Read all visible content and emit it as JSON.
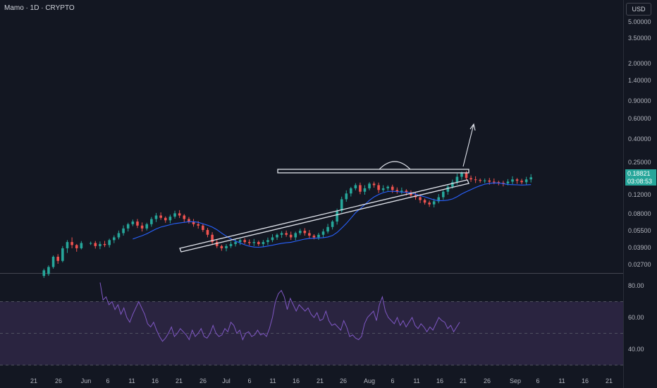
{
  "header": {
    "title": "Mamo · 1D · CRYPTO",
    "currency": "USD"
  },
  "price_label": {
    "value": "0.18821",
    "countdown": "03:08:53"
  },
  "chart_data": {
    "type": "candlestick",
    "scale": "log",
    "price_axis": [
      "5.00000",
      "3.50000",
      "2.00000",
      "1.40000",
      "0.90000",
      "0.60000",
      "0.40000",
      "0.25000",
      "0.12000",
      "0.08000",
      "0.05500",
      "0.03900",
      "0.02700"
    ],
    "x_axis": [
      "21",
      "26",
      "Jun",
      "6",
      "11",
      "16",
      "21",
      "26",
      "Jul",
      "6",
      "11",
      "16",
      "21",
      "26",
      "Aug",
      "6",
      "11",
      "16",
      "21",
      "26",
      "Sep",
      "6",
      "11",
      "16",
      "21"
    ],
    "colors": {
      "up": "#26a69a",
      "down": "#ef5350",
      "ma": "#2962ff",
      "rsi": "#7e57c2",
      "rsi_band": "#2a2440"
    },
    "rsi": {
      "axis": [
        "80.00",
        "60.00",
        "40.00"
      ],
      "levels": [
        70,
        30
      ],
      "values": [
        82,
        71,
        73,
        68,
        70,
        65,
        68,
        62,
        66,
        60,
        57,
        62,
        66,
        70,
        66,
        62,
        56,
        54,
        57,
        52,
        48,
        45,
        47,
        50,
        54,
        48,
        50,
        53,
        51,
        49,
        46,
        52,
        48,
        50,
        53,
        48,
        47,
        50,
        55,
        50,
        48,
        49,
        53,
        51,
        57,
        55,
        50,
        52,
        46,
        50,
        51,
        48,
        49,
        52,
        49,
        50,
        48,
        53,
        60,
        70,
        75,
        77,
        73,
        65,
        72,
        68,
        64,
        68,
        66,
        64,
        66,
        62,
        60,
        63,
        58,
        59,
        64,
        58,
        55,
        56,
        54,
        52,
        58,
        54,
        48,
        49,
        47,
        46,
        48,
        56,
        60,
        62,
        64,
        58,
        68,
        73,
        64,
        60,
        58,
        56,
        60,
        55,
        58,
        54,
        57,
        60,
        55,
        53,
        56,
        54,
        51,
        54,
        52,
        56,
        60,
        58,
        57,
        53,
        55,
        51,
        54,
        57
      ]
    },
    "annotations": [
      "horizontal resistance",
      "ascending trendline",
      "arc",
      "breakout arrow"
    ]
  }
}
